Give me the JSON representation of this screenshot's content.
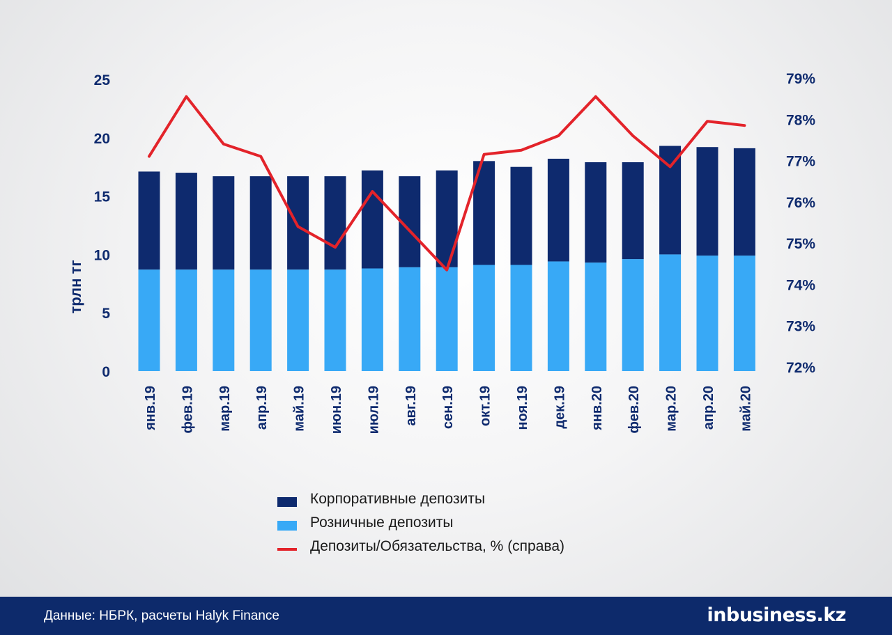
{
  "chart_data": {
    "type": "bar",
    "stacked": true,
    "categories": [
      "янв.19",
      "фев.19",
      "мар.19",
      "апр.19",
      "май.19",
      "июн.19",
      "июл.19",
      "авг.19",
      "сен.19",
      "окт.19",
      "ноя.19",
      "дек.19",
      "янв.20",
      "фев.20",
      "мар.20",
      "апр.20",
      "май.20"
    ],
    "series": [
      {
        "name": "Розничные депозиты",
        "kind": "bar",
        "color": "#38a9f6",
        "values": [
          8.7,
          8.7,
          8.7,
          8.7,
          8.7,
          8.7,
          8.8,
          8.9,
          8.9,
          9.1,
          9.1,
          9.4,
          9.3,
          9.6,
          10.0,
          9.9,
          9.9
        ]
      },
      {
        "name": "Корпоративные депозиты",
        "kind": "bar",
        "color": "#0e2a6e",
        "values": [
          8.4,
          8.3,
          8.0,
          8.0,
          8.0,
          8.0,
          8.4,
          7.8,
          8.3,
          8.9,
          8.4,
          8.8,
          8.6,
          8.3,
          9.3,
          9.3,
          9.2
        ]
      },
      {
        "name": "Депозиты/Обязательства, % (справа)",
        "kind": "line",
        "axis": "right",
        "color": "#e3232a",
        "values": [
          77.1,
          78.55,
          77.4,
          77.1,
          75.4,
          74.9,
          76.25,
          75.3,
          74.35,
          77.15,
          77.25,
          77.6,
          78.55,
          77.6,
          76.85,
          77.95,
          77.85
        ]
      }
    ],
    "ylabel": "трлн тг",
    "ylim": [
      0,
      25
    ],
    "yticks": [
      "0",
      "5",
      "10",
      "15",
      "20",
      "25"
    ],
    "y2lim": [
      72,
      79
    ],
    "y2ticks": [
      "72%",
      "73%",
      "74%",
      "75%",
      "76%",
      "77%",
      "78%",
      "79%"
    ],
    "legend_position": "bottom",
    "grid": false
  },
  "legend": [
    {
      "label": "Корпоративные депозиты",
      "type": "bar",
      "color": "#0e2a6e"
    },
    {
      "label": "Розничные депозиты",
      "type": "bar",
      "color": "#38a9f6"
    },
    {
      "label": "Депозиты/Обязательства, % (справа)",
      "type": "line",
      "color": "#e3232a"
    }
  ],
  "footer": {
    "source": "Данные: НБРК, расчеты Halyk Finance",
    "brand": "inbusiness.kz"
  }
}
